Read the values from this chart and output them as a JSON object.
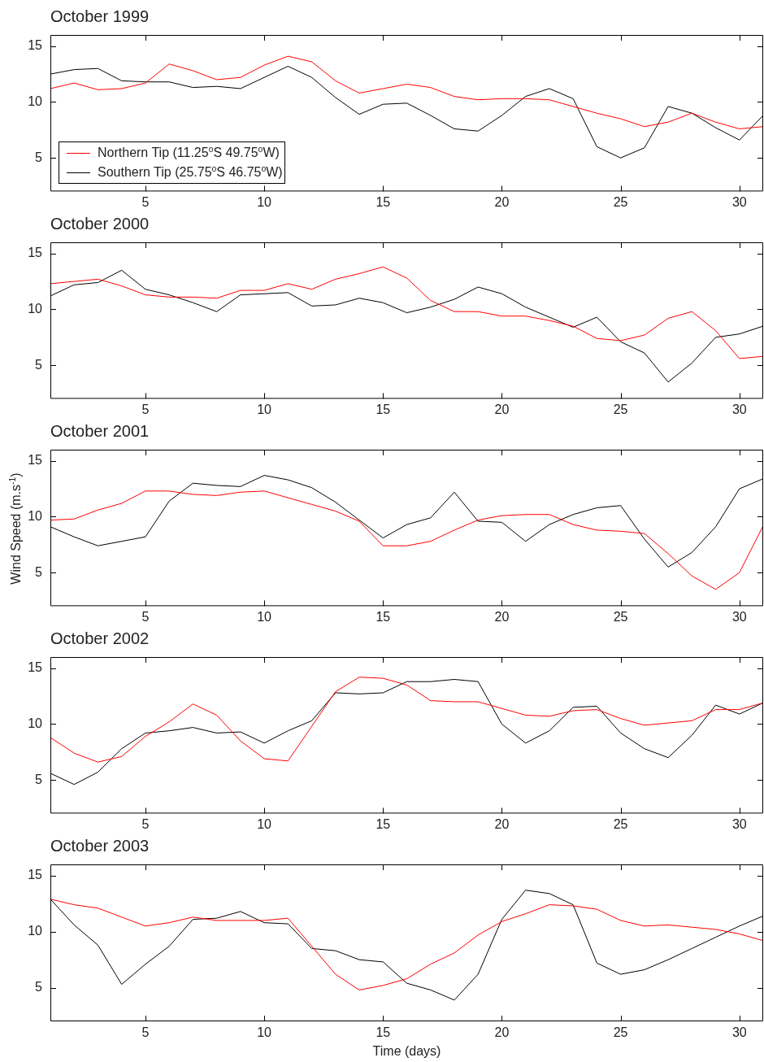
{
  "chart_data": [
    {
      "type": "line",
      "title": "October 1999",
      "x": [
        1,
        2,
        3,
        4,
        5,
        6,
        7,
        8,
        9,
        10,
        11,
        12,
        13,
        14,
        15,
        16,
        17,
        18,
        19,
        20,
        21,
        22,
        23,
        24,
        25,
        26,
        27,
        28,
        29,
        30,
        31
      ],
      "xlim": [
        1,
        31
      ],
      "xticks": [
        5,
        10,
        15,
        20,
        25,
        30
      ],
      "ylim": [
        2,
        16
      ],
      "yticks": [
        5,
        10,
        15
      ],
      "marker": "none",
      "line_style": "solid",
      "legend": "bottom left",
      "series": [
        {
          "name": "Northern Tip (11.25$^{o}$S 49.75$^{o}$W)",
          "color": "#ff0000",
          "values": [
            11.2,
            11.7,
            11.1,
            11.2,
            11.7,
            13.4,
            12.8,
            12.0,
            12.2,
            13.3,
            14.1,
            13.6,
            11.9,
            10.8,
            11.2,
            11.6,
            11.3,
            10.5,
            10.2,
            10.3,
            10.3,
            10.2,
            9.6,
            9.0,
            8.5,
            7.8,
            8.2,
            9.0,
            8.2,
            7.6,
            7.8
          ]
        },
        {
          "name": "Southern Tip (25.75$^{o}$S 46.75$^{o}$W)",
          "color": "#000000",
          "values": [
            12.5,
            12.9,
            13.0,
            11.9,
            11.8,
            11.8,
            11.3,
            11.4,
            11.2,
            12.2,
            13.2,
            12.2,
            10.4,
            8.9,
            9.8,
            9.9,
            8.8,
            7.6,
            7.4,
            8.8,
            10.5,
            11.2,
            10.3,
            6.0,
            5.0,
            5.9,
            9.6,
            9.0,
            7.7,
            6.6,
            8.8
          ]
        }
      ]
    },
    {
      "type": "line",
      "title": "October 2000",
      "x": [
        1,
        2,
        3,
        4,
        5,
        6,
        7,
        8,
        9,
        10,
        11,
        12,
        13,
        14,
        15,
        16,
        17,
        18,
        19,
        20,
        21,
        22,
        23,
        24,
        25,
        26,
        27,
        28,
        29,
        30,
        31
      ],
      "xlim": [
        1,
        31
      ],
      "xticks": [
        5,
        10,
        15,
        20,
        25,
        30
      ],
      "ylim": [
        2,
        16
      ],
      "yticks": [
        5,
        10,
        15
      ],
      "marker": "none",
      "line_style": "solid",
      "series": [
        {
          "color": "#ff0000",
          "values": [
            12.3,
            12.5,
            12.7,
            12.1,
            11.3,
            11.1,
            11.1,
            11.0,
            11.7,
            11.7,
            12.3,
            11.8,
            12.7,
            13.2,
            13.8,
            12.8,
            10.8,
            9.8,
            9.8,
            9.4,
            9.4,
            9.0,
            8.5,
            7.4,
            7.2,
            7.7,
            9.2,
            9.8,
            8.1,
            5.6,
            5.8
          ]
        },
        {
          "color": "#000000",
          "values": [
            11.2,
            12.2,
            12.4,
            13.5,
            11.8,
            11.3,
            10.6,
            9.8,
            11.3,
            11.4,
            11.5,
            10.3,
            10.4,
            11.0,
            10.6,
            9.7,
            10.2,
            10.9,
            12.0,
            11.4,
            10.2,
            9.3,
            8.4,
            9.3,
            7.1,
            6.1,
            3.5,
            5.2,
            7.5,
            7.8,
            8.5
          ]
        }
      ]
    },
    {
      "type": "line",
      "title": "October 2001",
      "ylabel": "Wind Speed (m.s$^{-1}$)",
      "x": [
        1,
        2,
        3,
        4,
        5,
        6,
        7,
        8,
        9,
        10,
        11,
        12,
        13,
        14,
        15,
        16,
        17,
        18,
        19,
        20,
        21,
        22,
        23,
        24,
        25,
        26,
        27,
        28,
        29,
        30,
        31
      ],
      "xlim": [
        1,
        31
      ],
      "xticks": [
        5,
        10,
        15,
        20,
        25,
        30
      ],
      "ylim": [
        2,
        16
      ],
      "yticks": [
        5,
        10,
        15
      ],
      "marker": "none",
      "line_style": "solid",
      "series": [
        {
          "color": "#ff0000",
          "values": [
            9.7,
            9.8,
            10.6,
            11.2,
            12.3,
            12.3,
            12.0,
            11.9,
            12.2,
            12.3,
            11.7,
            11.1,
            10.5,
            9.6,
            7.4,
            7.4,
            7.8,
            8.8,
            9.7,
            10.1,
            10.2,
            10.2,
            9.3,
            8.8,
            8.7,
            8.5,
            6.7,
            4.7,
            3.5,
            5.0,
            9.2
          ]
        },
        {
          "color": "#000000",
          "values": [
            9.1,
            8.2,
            7.4,
            7.8,
            8.2,
            11.4,
            13.0,
            12.8,
            12.7,
            13.7,
            13.3,
            12.6,
            11.3,
            9.7,
            8.1,
            9.3,
            9.9,
            12.2,
            9.6,
            9.5,
            7.8,
            9.3,
            10.2,
            10.8,
            11.0,
            8.0,
            5.5,
            6.8,
            9.1,
            12.5,
            13.4
          ]
        }
      ]
    },
    {
      "type": "line",
      "title": "October 2002",
      "x": [
        1,
        2,
        3,
        4,
        5,
        6,
        7,
        8,
        9,
        10,
        11,
        12,
        13,
        14,
        15,
        16,
        17,
        18,
        19,
        20,
        21,
        22,
        23,
        24,
        25,
        26,
        27,
        28,
        29,
        30,
        31
      ],
      "xlim": [
        1,
        31
      ],
      "xticks": [
        5,
        10,
        15,
        20,
        25,
        30
      ],
      "ylim": [
        2,
        16
      ],
      "yticks": [
        5,
        10,
        15
      ],
      "marker": "none",
      "line_style": "solid",
      "series": [
        {
          "color": "#ff0000",
          "values": [
            8.8,
            7.4,
            6.6,
            7.1,
            8.9,
            10.2,
            11.8,
            10.8,
            8.5,
            6.9,
            6.7,
            9.8,
            12.9,
            14.2,
            14.1,
            13.5,
            12.1,
            12.0,
            12.0,
            11.4,
            10.8,
            10.7,
            11.2,
            11.3,
            10.5,
            9.9,
            10.1,
            10.3,
            11.3,
            11.3,
            11.9
          ]
        },
        {
          "color": "#000000",
          "values": [
            5.6,
            4.6,
            5.7,
            7.8,
            9.2,
            9.4,
            9.7,
            9.2,
            9.3,
            8.3,
            9.4,
            10.3,
            12.8,
            12.7,
            12.8,
            13.8,
            13.8,
            14.0,
            13.8,
            10.0,
            8.3,
            9.4,
            11.5,
            11.6,
            9.2,
            7.8,
            7.0,
            9.0,
            11.7,
            10.9,
            11.9
          ]
        }
      ]
    },
    {
      "type": "line",
      "title": "October 2003",
      "xlabel": "Time (days)",
      "x": [
        1,
        2,
        3,
        4,
        5,
        6,
        7,
        8,
        9,
        10,
        11,
        12,
        13,
        14,
        15,
        16,
        17,
        18,
        19,
        20,
        21,
        22,
        23,
        24,
        25,
        26,
        27,
        28,
        29,
        30,
        31
      ],
      "xlim": [
        1,
        31
      ],
      "xticks": [
        5,
        10,
        15,
        20,
        25,
        30
      ],
      "ylim": [
        2,
        16
      ],
      "yticks": [
        5,
        10,
        15
      ],
      "marker": "none",
      "line_style": "solid",
      "series": [
        {
          "color": "#ff0000",
          "values": [
            12.9,
            12.4,
            12.1,
            11.3,
            10.5,
            10.8,
            11.3,
            11.0,
            11.0,
            11.0,
            11.2,
            8.7,
            6.2,
            4.8,
            5.2,
            5.8,
            7.1,
            8.1,
            9.7,
            10.9,
            11.6,
            12.4,
            12.3,
            12.0,
            11.0,
            10.5,
            10.6,
            10.4,
            10.2,
            9.8,
            9.2
          ]
        },
        {
          "color": "#000000",
          "values": [
            12.9,
            10.6,
            8.8,
            5.3,
            7.1,
            8.7,
            11.1,
            11.2,
            11.8,
            10.8,
            10.7,
            8.5,
            8.3,
            7.5,
            7.3,
            5.4,
            4.8,
            3.9,
            6.2,
            11.1,
            13.7,
            13.4,
            12.4,
            7.2,
            6.2,
            6.6,
            7.5,
            8.5,
            9.5,
            10.5,
            11.4
          ]
        }
      ]
    }
  ]
}
